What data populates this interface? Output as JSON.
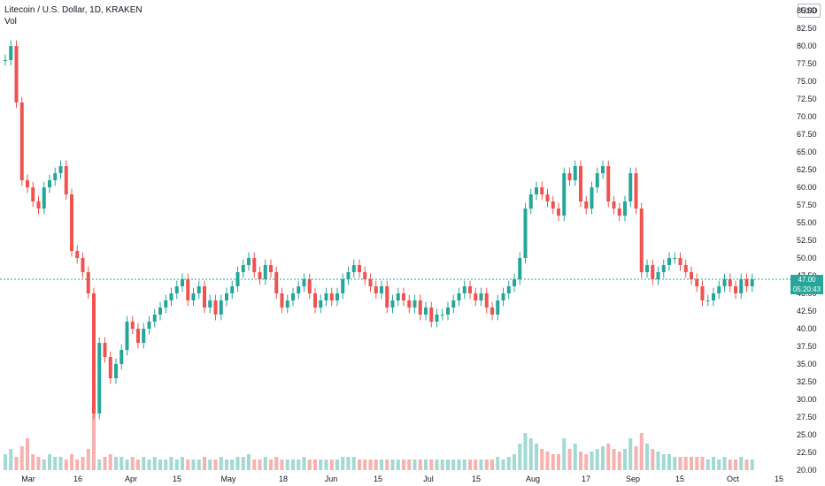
{
  "header": {
    "title": "Litecoin / U.S. Dollar, 1D, KRAKEN",
    "volume_label": "Vol",
    "currency": "USD"
  },
  "last_price": {
    "price": "47.00",
    "countdown": "05:20:43"
  },
  "colors": {
    "up": "#26a69a",
    "down": "#ef5350",
    "up_volume": "#a2d9d3",
    "down_volume": "#f7b2b0",
    "last_price_line": "#26a69a"
  },
  "chart_data": {
    "type": "candlestick",
    "symbol": "Litecoin / U.S. Dollar",
    "interval": "1D",
    "exchange": "KRAKEN",
    "y_ticks": [
      "85.00",
      "82.50",
      "80.00",
      "77.50",
      "75.00",
      "72.50",
      "70.00",
      "67.50",
      "65.00",
      "62.50",
      "60.00",
      "57.50",
      "55.00",
      "52.50",
      "50.00",
      "47.50",
      "45.00",
      "42.50",
      "40.00",
      "37.50",
      "35.00",
      "32.50",
      "30.00",
      "27.50",
      "25.00",
      "22.50",
      "20.00"
    ],
    "x_ticks": [
      "Mar",
      "16",
      "Apr",
      "15",
      "May",
      "18",
      "Jun",
      "15",
      "Jul",
      "15",
      "Aug",
      "17",
      "Sep",
      "15",
      "Oct",
      "15"
    ],
    "ylim": [
      20,
      85
    ],
    "closes": [
      78,
      80,
      72,
      61,
      60,
      58,
      57,
      60,
      61,
      62,
      63,
      59,
      51,
      50,
      48,
      45,
      28,
      38,
      36,
      33,
      35,
      37,
      41,
      40,
      38,
      40,
      41,
      42,
      43,
      44,
      45,
      46,
      47,
      44,
      45,
      46,
      43,
      44,
      42,
      44,
      45,
      46,
      48,
      49,
      50,
      48,
      47,
      49,
      48,
      45,
      43,
      44,
      45,
      46,
      47,
      45,
      43,
      44,
      45,
      44,
      45,
      47,
      48,
      49,
      48,
      47,
      46,
      45,
      46,
      43,
      44,
      45,
      44,
      43,
      44,
      42,
      43,
      41,
      42,
      42,
      43,
      44,
      45,
      46,
      45,
      44,
      45,
      43,
      42,
      44,
      45,
      46,
      47,
      50,
      57,
      59,
      60,
      59,
      58,
      57,
      56,
      62,
      61,
      63,
      58,
      57,
      60,
      62,
      63,
      58,
      57,
      56,
      58,
      62,
      57,
      48,
      49,
      47,
      48,
      49,
      50,
      50,
      49,
      48,
      47,
      46,
      44,
      44,
      45,
      46,
      47,
      46,
      45,
      47,
      46,
      47
    ],
    "volumes": [
      0.06,
      0.08,
      0.05,
      0.09,
      0.12,
      0.06,
      0.05,
      0.04,
      0.06,
      0.05,
      0.05,
      0.04,
      0.06,
      0.04,
      0.05,
      0.08,
      0.25,
      0.04,
      0.05,
      0.06,
      0.05,
      0.05,
      0.04,
      0.05,
      0.04,
      0.05,
      0.04,
      0.05,
      0.04,
      0.04,
      0.05,
      0.04,
      0.05,
      0.04,
      0.04,
      0.04,
      0.05,
      0.04,
      0.04,
      0.05,
      0.04,
      0.04,
      0.05,
      0.05,
      0.06,
      0.04,
      0.04,
      0.05,
      0.04,
      0.05,
      0.04,
      0.04,
      0.04,
      0.04,
      0.05,
      0.04,
      0.04,
      0.04,
      0.04,
      0.04,
      0.04,
      0.05,
      0.05,
      0.05,
      0.04,
      0.04,
      0.04,
      0.04,
      0.04,
      0.04,
      0.04,
      0.04,
      0.04,
      0.04,
      0.04,
      0.04,
      0.04,
      0.04,
      0.04,
      0.04,
      0.04,
      0.04,
      0.04,
      0.04,
      0.04,
      0.04,
      0.04,
      0.04,
      0.04,
      0.05,
      0.04,
      0.05,
      0.06,
      0.1,
      0.14,
      0.12,
      0.1,
      0.08,
      0.07,
      0.06,
      0.06,
      0.12,
      0.08,
      0.1,
      0.07,
      0.06,
      0.07,
      0.08,
      0.09,
      0.1,
      0.08,
      0.07,
      0.08,
      0.12,
      0.09,
      0.14,
      0.1,
      0.08,
      0.07,
      0.06,
      0.06,
      0.05,
      0.05,
      0.05,
      0.05,
      0.05,
      0.05,
      0.04,
      0.05,
      0.04,
      0.05,
      0.04,
      0.04,
      0.05,
      0.04,
      0.04
    ]
  }
}
